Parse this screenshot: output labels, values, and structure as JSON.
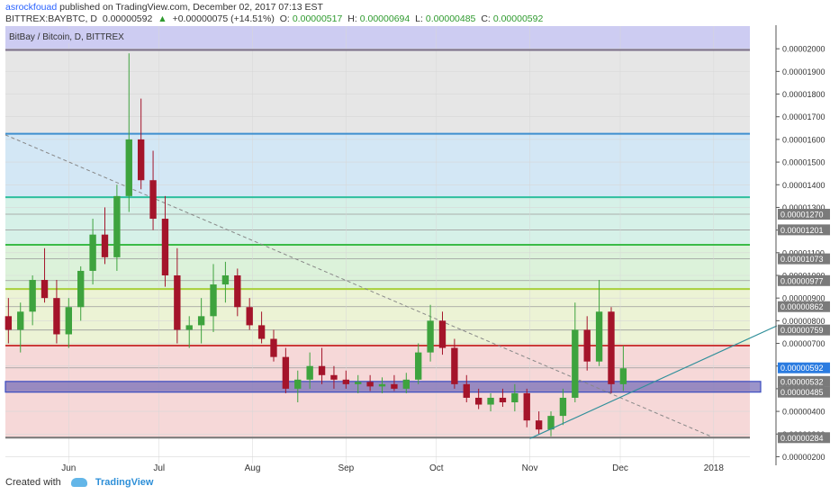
{
  "header": {
    "author": "asrockfouad",
    "published": "published on TradingView.com, December 02, 2017 07:13 EST",
    "symbol": "BITTREX:BAYBTC, D",
    "last": "0.00000592",
    "arrow": "▲",
    "change": "+0.00000075 (+14.51%)",
    "o_label": "O:",
    "o_value": "0.00000517",
    "h_label": "H:",
    "h_value": "0.00000694",
    "l_label": "L:",
    "l_value": "0.00000485",
    "c_label": "C:",
    "c_value": "0.00000592"
  },
  "footer": {
    "created_with": "Created with",
    "brand": "TradingView"
  },
  "colors": {
    "up": "#3ea33e",
    "down": "#a4142a",
    "grid": "#d7d7d7"
  },
  "chart_data": {
    "type": "candlestick",
    "title": "BitBay / Bitcoin, D, BITTREX",
    "ylim": [
      1.7e-06,
      2.1e-05
    ],
    "y_ticks": [
      "0.00002000",
      "0.00001900",
      "0.00001800",
      "0.00001700",
      "0.00001600",
      "0.00001500",
      "0.00001400",
      "0.00001300",
      "0.00001200",
      "0.00001100",
      "0.00001000",
      "0.00000900",
      "0.00000800",
      "0.00000700",
      "0.00000600",
      "0.00000500",
      "0.00000400",
      "0.00000300",
      "0.00000200"
    ],
    "x_labels": [
      {
        "label": "Jun",
        "date": "2017-06-01"
      },
      {
        "label": "Jul",
        "date": "2017-07-01"
      },
      {
        "label": "Aug",
        "date": "2017-08-01"
      },
      {
        "label": "Sep",
        "date": "2017-09-01"
      },
      {
        "label": "Oct",
        "date": "2017-10-01"
      },
      {
        "label": "Nov",
        "date": "2017-11-01"
      },
      {
        "label": "Dec",
        "date": "2017-12-01"
      },
      {
        "label": "2018",
        "date": "2018-01-01"
      }
    ],
    "x_range": [
      "2017-05-11",
      "2018-01-13"
    ],
    "price_labels": [
      {
        "text": "0.00001270",
        "value": 1.27e-05
      },
      {
        "text": "0.00001201",
        "value": 1.201e-05
      },
      {
        "text": "0.00001073",
        "value": 1.073e-05
      },
      {
        "text": "0.00000977",
        "value": 9.77e-06
      },
      {
        "text": "0.00000862",
        "value": 8.62e-06
      },
      {
        "text": "0.00000759",
        "value": 7.59e-06
      },
      {
        "text": "0.00000592",
        "value": 5.92e-06,
        "current": true
      },
      {
        "text": "0.00000532",
        "value": 5.32e-06
      },
      {
        "text": "0.00000485",
        "value": 4.85e-06
      },
      {
        "text": "0.00000284",
        "value": 2.84e-06
      }
    ],
    "fib_levels": [
      {
        "value": 1.995e-05,
        "color": "#7a6e88"
      },
      {
        "value": 1.625e-05,
        "color": "#3e8fcf"
      },
      {
        "value": 1.345e-05,
        "color": "#2fbf9e"
      },
      {
        "value": 1.135e-05,
        "color": "#3bbb48"
      },
      {
        "value": 9.4e-06,
        "color": "#a8cf3a"
      },
      {
        "value": 6.9e-06,
        "color": "#cc3b3b"
      },
      {
        "value": 2.84e-06,
        "color": "#777777"
      }
    ],
    "fib_bands": [
      {
        "from": 2.1e-05,
        "to": 1.995e-05,
        "color": "#cdccf2"
      },
      {
        "from": 1.995e-05,
        "to": 1.625e-05,
        "color": "#e6e6e6"
      },
      {
        "from": 1.625e-05,
        "to": 1.345e-05,
        "color": "#d3e7f5"
      },
      {
        "from": 1.345e-05,
        "to": 1.135e-05,
        "color": "#d6f1e8"
      },
      {
        "from": 1.135e-05,
        "to": 9.4e-06,
        "color": "#dcf2da"
      },
      {
        "from": 9.4e-06,
        "to": 6.9e-06,
        "color": "#ecf3d5"
      },
      {
        "from": 6.9e-06,
        "to": 2.84e-06,
        "color": "#f6d8d8"
      }
    ],
    "support_zone": {
      "from": 4.85e-06,
      "to": 5.32e-06
    },
    "dashed_trendline": [
      {
        "date": "2017-05-11",
        "value": 1.62e-05
      },
      {
        "date": "2017-12-31",
        "value": 2.9e-06
      }
    ],
    "support_trendline": [
      {
        "date": "2017-11-01",
        "value": 2.8e-06
      },
      {
        "date": "2018-01-13",
        "value": 7.3e-06
      }
    ],
    "candles": [
      {
        "date": "2017-05-12",
        "o": 8.2e-06,
        "h": 9e-06,
        "l": 7e-06,
        "c": 7.6e-06
      },
      {
        "date": "2017-05-16",
        "o": 7.6e-06,
        "h": 8.8e-06,
        "l": 6.6e-06,
        "c": 8.4e-06
      },
      {
        "date": "2017-05-20",
        "o": 8.4e-06,
        "h": 1e-05,
        "l": 7.8e-06,
        "c": 9.8e-06
      },
      {
        "date": "2017-05-24",
        "o": 9.8e-06,
        "h": 1.12e-05,
        "l": 8.8e-06,
        "c": 9e-06
      },
      {
        "date": "2017-05-28",
        "o": 9e-06,
        "h": 9.8e-06,
        "l": 7e-06,
        "c": 7.4e-06
      },
      {
        "date": "2017-06-01",
        "o": 7.4e-06,
        "h": 9e-06,
        "l": 6.8e-06,
        "c": 8.6e-06
      },
      {
        "date": "2017-06-05",
        "o": 8.6e-06,
        "h": 1.04e-05,
        "l": 8e-06,
        "c": 1.02e-05
      },
      {
        "date": "2017-06-09",
        "o": 1.02e-05,
        "h": 1.25e-05,
        "l": 9.6e-06,
        "c": 1.18e-05
      },
      {
        "date": "2017-06-13",
        "o": 1.18e-05,
        "h": 1.3e-05,
        "l": 1.05e-05,
        "c": 1.08e-05
      },
      {
        "date": "2017-06-17",
        "o": 1.08e-05,
        "h": 1.4e-05,
        "l": 1.02e-05,
        "c": 1.35e-05
      },
      {
        "date": "2017-06-21",
        "o": 1.35e-05,
        "h": 1.98e-05,
        "l": 1.28e-05,
        "c": 1.6e-05
      },
      {
        "date": "2017-06-25",
        "o": 1.6e-05,
        "h": 1.78e-05,
        "l": 1.38e-05,
        "c": 1.42e-05
      },
      {
        "date": "2017-06-29",
        "o": 1.42e-05,
        "h": 1.55e-05,
        "l": 1.2e-05,
        "c": 1.25e-05
      },
      {
        "date": "2017-07-03",
        "o": 1.25e-05,
        "h": 1.35e-05,
        "l": 9.5e-06,
        "c": 1e-05
      },
      {
        "date": "2017-07-07",
        "o": 1e-05,
        "h": 1.12e-05,
        "l": 7e-06,
        "c": 7.6e-06
      },
      {
        "date": "2017-07-11",
        "o": 7.6e-06,
        "h": 8.2e-06,
        "l": 6.8e-06,
        "c": 7.8e-06
      },
      {
        "date": "2017-07-15",
        "o": 7.8e-06,
        "h": 9e-06,
        "l": 7e-06,
        "c": 8.2e-06
      },
      {
        "date": "2017-07-19",
        "o": 8.2e-06,
        "h": 1.05e-05,
        "l": 7.5e-06,
        "c": 9.6e-06
      },
      {
        "date": "2017-07-23",
        "o": 9.6e-06,
        "h": 1.06e-05,
        "l": 8.8e-06,
        "c": 1e-05
      },
      {
        "date": "2017-07-27",
        "o": 1e-05,
        "h": 1.03e-05,
        "l": 8.2e-06,
        "c": 8.6e-06
      },
      {
        "date": "2017-07-31",
        "o": 8.6e-06,
        "h": 9e-06,
        "l": 7.6e-06,
        "c": 7.8e-06
      },
      {
        "date": "2017-08-04",
        "o": 7.8e-06,
        "h": 8.4e-06,
        "l": 7e-06,
        "c": 7.2e-06
      },
      {
        "date": "2017-08-08",
        "o": 7.2e-06,
        "h": 7.6e-06,
        "l": 6.2e-06,
        "c": 6.4e-06
      },
      {
        "date": "2017-08-12",
        "o": 6.4e-06,
        "h": 6.8e-06,
        "l": 4.8e-06,
        "c": 5e-06
      },
      {
        "date": "2017-08-16",
        "o": 5e-06,
        "h": 5.8e-06,
        "l": 4.4e-06,
        "c": 5.4e-06
      },
      {
        "date": "2017-08-20",
        "o": 5.4e-06,
        "h": 6.6e-06,
        "l": 5e-06,
        "c": 6e-06
      },
      {
        "date": "2017-08-24",
        "o": 6e-06,
        "h": 6.8e-06,
        "l": 5.2e-06,
        "c": 5.6e-06
      },
      {
        "date": "2017-08-28",
        "o": 5.6e-06,
        "h": 6e-06,
        "l": 5e-06,
        "c": 5.4e-06
      },
      {
        "date": "2017-09-01",
        "o": 5.4e-06,
        "h": 5.8e-06,
        "l": 5e-06,
        "c": 5.2e-06
      },
      {
        "date": "2017-09-05",
        "o": 5.2e-06,
        "h": 5.6e-06,
        "l": 4.8e-06,
        "c": 5.3e-06
      },
      {
        "date": "2017-09-09",
        "o": 5.3e-06,
        "h": 5.6e-06,
        "l": 4.9e-06,
        "c": 5.1e-06
      },
      {
        "date": "2017-09-13",
        "o": 5.1e-06,
        "h": 5.5e-06,
        "l": 4.8e-06,
        "c": 5.2e-06
      },
      {
        "date": "2017-09-17",
        "o": 5.2e-06,
        "h": 5.6e-06,
        "l": 4.9e-06,
        "c": 5e-06
      },
      {
        "date": "2017-09-21",
        "o": 5e-06,
        "h": 5.7e-06,
        "l": 4.8e-06,
        "c": 5.4e-06
      },
      {
        "date": "2017-09-25",
        "o": 5.4e-06,
        "h": 7e-06,
        "l": 5.2e-06,
        "c": 6.6e-06
      },
      {
        "date": "2017-09-29",
        "o": 6.6e-06,
        "h": 8.7e-06,
        "l": 6.2e-06,
        "c": 8e-06
      },
      {
        "date": "2017-10-03",
        "o": 8e-06,
        "h": 8.4e-06,
        "l": 6.5e-06,
        "c": 6.8e-06
      },
      {
        "date": "2017-10-07",
        "o": 6.8e-06,
        "h": 7.2e-06,
        "l": 5e-06,
        "c": 5.2e-06
      },
      {
        "date": "2017-10-11",
        "o": 5.2e-06,
        "h": 5.6e-06,
        "l": 4.4e-06,
        "c": 4.6e-06
      },
      {
        "date": "2017-10-15",
        "o": 4.6e-06,
        "h": 5e-06,
        "l": 4.1e-06,
        "c": 4.3e-06
      },
      {
        "date": "2017-10-19",
        "o": 4.3e-06,
        "h": 4.8e-06,
        "l": 4e-06,
        "c": 4.6e-06
      },
      {
        "date": "2017-10-23",
        "o": 4.6e-06,
        "h": 5e-06,
        "l": 4.2e-06,
        "c": 4.4e-06
      },
      {
        "date": "2017-10-27",
        "o": 4.4e-06,
        "h": 5.2e-06,
        "l": 4e-06,
        "c": 4.8e-06
      },
      {
        "date": "2017-10-31",
        "o": 4.8e-06,
        "h": 5e-06,
        "l": 3.3e-06,
        "c": 3.6e-06
      },
      {
        "date": "2017-11-04",
        "o": 3.6e-06,
        "h": 4e-06,
        "l": 3e-06,
        "c": 3.2e-06
      },
      {
        "date": "2017-11-08",
        "o": 3.2e-06,
        "h": 4e-06,
        "l": 2.9e-06,
        "c": 3.8e-06
      },
      {
        "date": "2017-11-12",
        "o": 3.8e-06,
        "h": 5e-06,
        "l": 3.4e-06,
        "c": 4.6e-06
      },
      {
        "date": "2017-11-16",
        "o": 4.6e-06,
        "h": 8.8e-06,
        "l": 4.4e-06,
        "c": 7.6e-06
      },
      {
        "date": "2017-11-20",
        "o": 7.6e-06,
        "h": 8.2e-06,
        "l": 5.8e-06,
        "c": 6.2e-06
      },
      {
        "date": "2017-11-24",
        "o": 6.2e-06,
        "h": 9.8e-06,
        "l": 6e-06,
        "c": 8.4e-06
      },
      {
        "date": "2017-11-28",
        "o": 8.4e-06,
        "h": 8.6e-06,
        "l": 4.8e-06,
        "c": 5.2e-06
      },
      {
        "date": "2017-12-02",
        "o": 5.2e-06,
        "h": 6.9e-06,
        "l": 4.9e-06,
        "c": 5.9e-06
      }
    ]
  }
}
